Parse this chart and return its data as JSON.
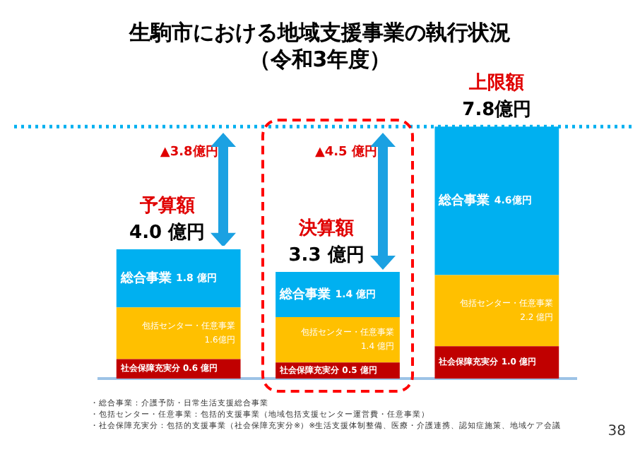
{
  "chart_data": {
    "type": "bar",
    "title": "生駒市における地域支援事業の執行状況",
    "subtitle": "（令和3年度）",
    "categories": [
      "予算額",
      "決算額",
      "上限額"
    ],
    "stacked": true,
    "tick_labels": false,
    "grid": false,
    "legend": false,
    "series": [
      {
        "name": "社会保障充実分",
        "color": "#c00000",
        "values": [
          0.6,
          0.5,
          1.0
        ],
        "value_labels": [
          "0.6 億円",
          "0.5 億円",
          "1.0 億円"
        ]
      },
      {
        "name": "包括センター・任意事業",
        "color": "#ffc000",
        "values": [
          1.6,
          1.4,
          2.2
        ],
        "value_labels": [
          "1.6億円",
          "1.4 億円",
          "2.2 億円"
        ]
      },
      {
        "name": "総合事業",
        "color": "#00b0f0",
        "values": [
          1.8,
          1.4,
          4.6
        ],
        "value_labels": [
          "1.8 億円",
          "1.4 億円",
          "4.6億円"
        ]
      }
    ],
    "totals": [
      "4.0 億円",
      "3.3 億円",
      "7.8億円"
    ],
    "ref_lines": [
      {
        "axis": "y",
        "value": 7.8,
        "color": "#00b0f0",
        "line_style": "dotted"
      }
    ],
    "annotations": [
      {
        "text": "▲3.8億円",
        "x": "予算額",
        "y": 7.8
      },
      {
        "text": "▲4.5 億円",
        "x": "決算額",
        "y": 7.8
      },
      "・総合事業：介護予防・日常生活支援総合事業",
      "・包括センター・任意事業：包括的支援事業（地域包括支援センター運営費・任意事業）",
      "・社会保障充実分：包括的支援事業（社会保障充実分※）※生活支援体制整備、医療・介護連携、認知症施策、地域ケア会議",
      "38"
    ]
  }
}
